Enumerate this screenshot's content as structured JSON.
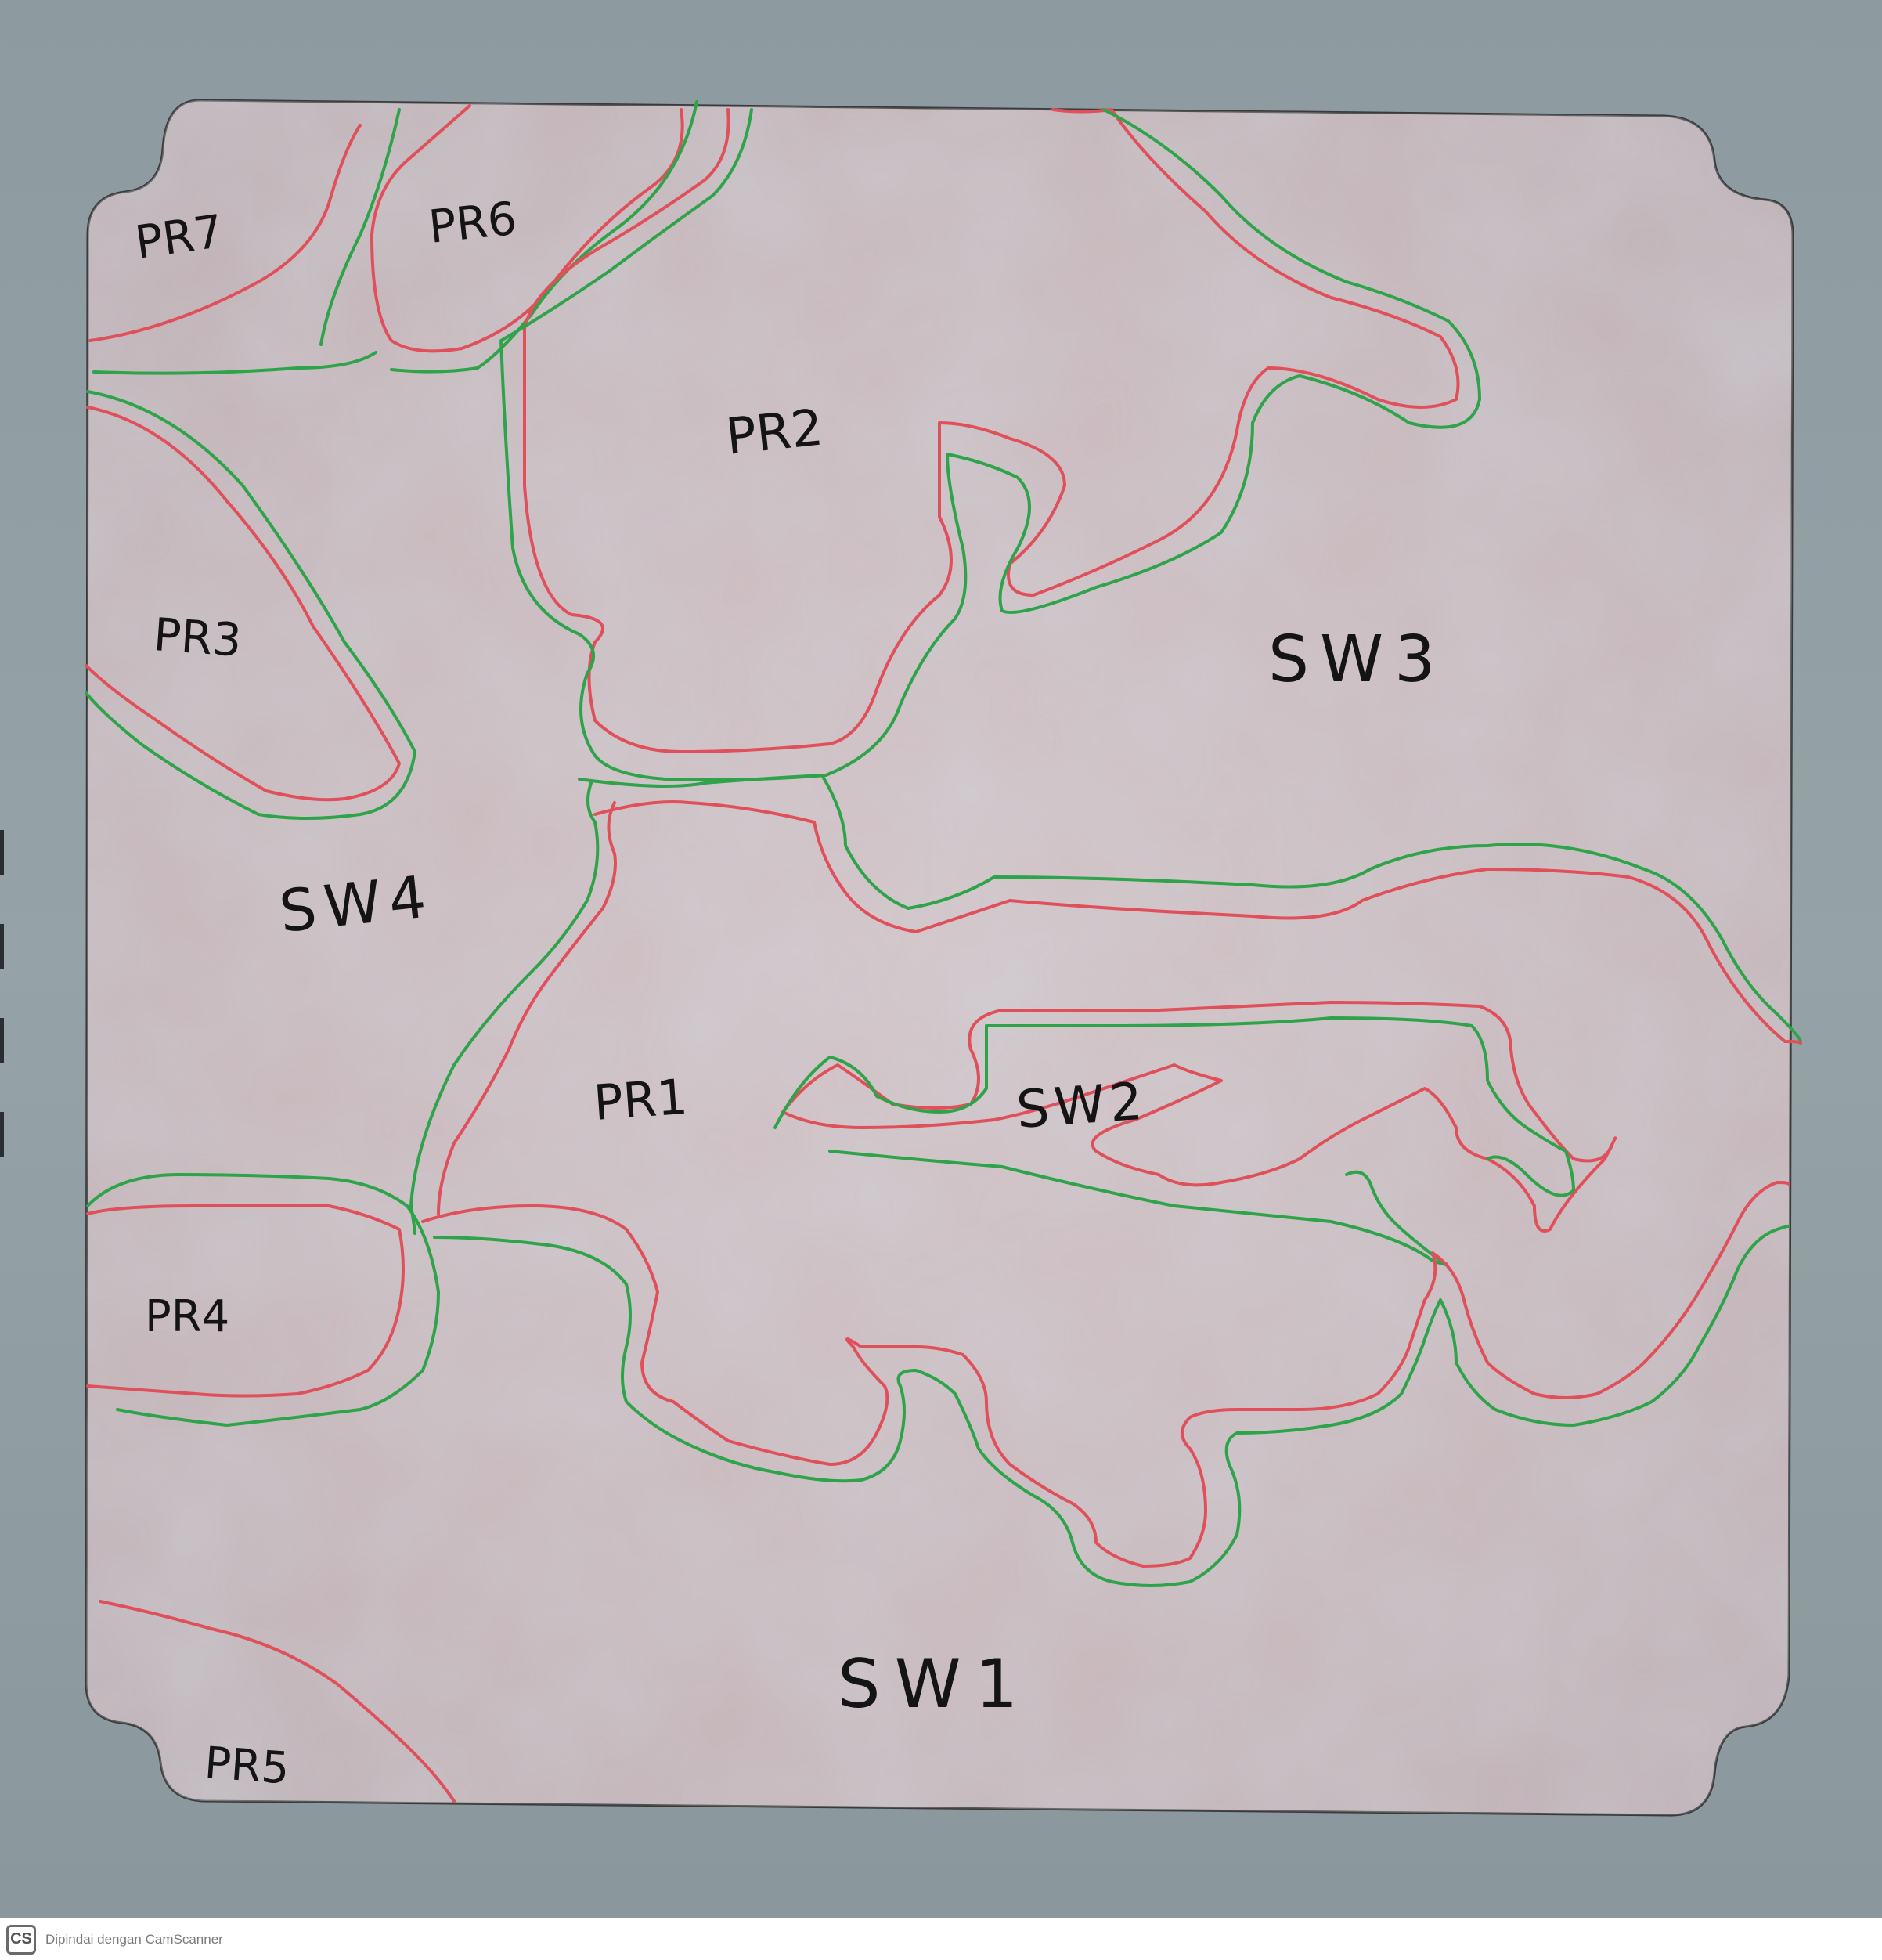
{
  "map": {
    "labels": {
      "pr7": "PR7",
      "pr6": "PR6",
      "pr2": "PR2",
      "pr3": "PR3",
      "sw3": "SW3",
      "sw4": "SW4",
      "pr1": "PR1",
      "sw2": "SW2",
      "pr4": "PR4",
      "sw1": "SW1",
      "pr5": "PR5"
    },
    "colors": {
      "red_line": "#e0505a",
      "green_line": "#2fa34a",
      "sheet": "#cdbcc0",
      "background": "#8f9ea3",
      "ink": "#141414"
    }
  },
  "footer": {
    "logo_text": "CS",
    "watermark": "Dipindai dengan CamScanner"
  }
}
